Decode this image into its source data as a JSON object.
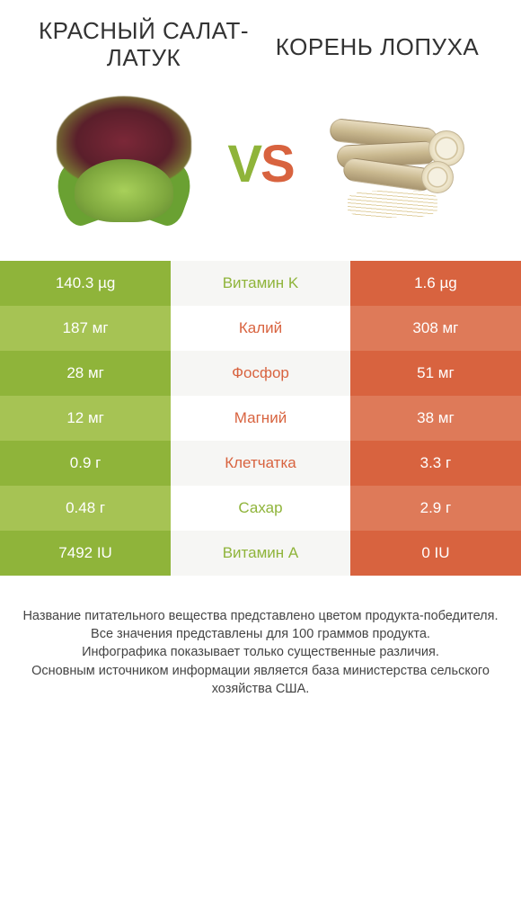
{
  "header": {
    "left": "Красный салат-латук",
    "right": "Корень лопуха"
  },
  "vs": {
    "v": "V",
    "s": "S"
  },
  "colors": {
    "green_dark": "#8fb43a",
    "green_light": "#a6c354",
    "orange_dark": "#d8633f",
    "orange_light": "#de7a59",
    "text_green": "#8fb43a",
    "text_orange": "#d8633f"
  },
  "rows": [
    {
      "left": "140.3 µg",
      "label": "Витамин K",
      "right": "1.6 µg",
      "winner": "left"
    },
    {
      "left": "187 мг",
      "label": "Калий",
      "right": "308 мг",
      "winner": "right"
    },
    {
      "left": "28 мг",
      "label": "Фосфор",
      "right": "51 мг",
      "winner": "right"
    },
    {
      "left": "12 мг",
      "label": "Магний",
      "right": "38 мг",
      "winner": "right"
    },
    {
      "left": "0.9 г",
      "label": "Клетчатка",
      "right": "3.3 г",
      "winner": "right"
    },
    {
      "left": "0.48 г",
      "label": "Сахар",
      "right": "2.9 г",
      "winner": "left"
    },
    {
      "left": "7492 IU",
      "label": "Витамин A",
      "right": "0 IU",
      "winner": "left"
    }
  ],
  "footer": {
    "line1": "Название питательного вещества представлено цветом продукта-победителя.",
    "line2": "Все значения представлены для 100 граммов продукта.",
    "line3": "Инфографика показывает только существенные различия.",
    "line4": "Основным источником информации является база министерства сельского хозяйства США."
  }
}
